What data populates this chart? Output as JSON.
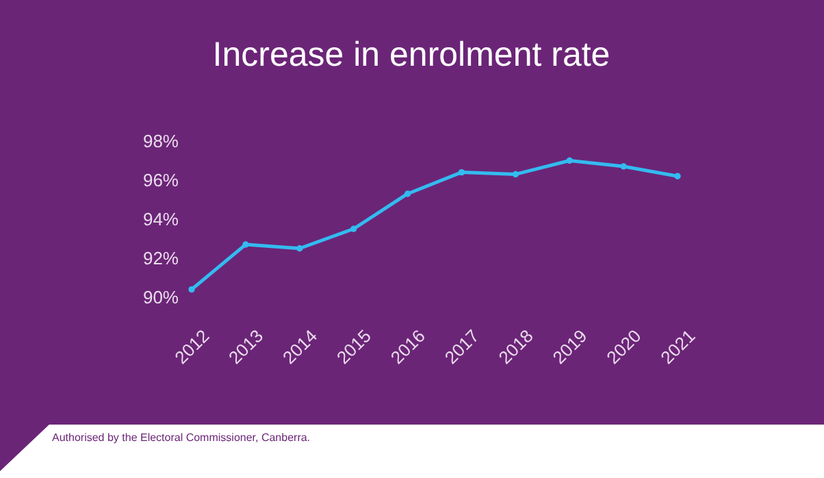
{
  "chart_data": {
    "type": "line",
    "title": "Increase in enrolment rate",
    "categories": [
      "2012",
      "2013",
      "2014",
      "2015",
      "2016",
      "2017",
      "2018",
      "2019",
      "2020",
      "2021"
    ],
    "series": [
      {
        "color": "#33bbf0",
        "values": [
          90.4,
          92.7,
          92.5,
          93.5,
          95.3,
          96.4,
          96.3,
          97.0,
          96.7,
          96.2
        ]
      }
    ],
    "ylim": [
      90,
      98
    ],
    "yticks": [
      {
        "value": 90,
        "label": "90%"
      },
      {
        "value": 92,
        "label": "92%"
      },
      {
        "value": 94,
        "label": "94%"
      },
      {
        "value": 96,
        "label": "96%"
      },
      {
        "value": 98,
        "label": "98%"
      }
    ],
    "grid": false,
    "legend": false,
    "marker": "circle",
    "line_style": "solid",
    "annotations": [
      "Authorised by the Electoral Commissioner, Canberra."
    ]
  }
}
